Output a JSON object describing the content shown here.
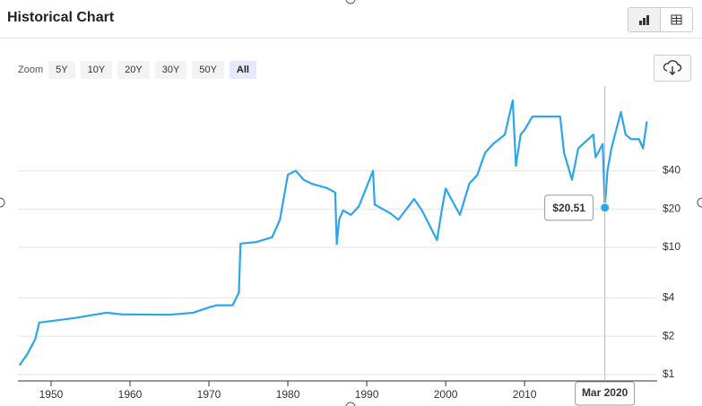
{
  "header": {
    "title": "Historical Chart"
  },
  "zoom": {
    "label": "Zoom",
    "options": [
      "5Y",
      "10Y",
      "20Y",
      "30Y",
      "50Y",
      "All"
    ],
    "active_index": 5
  },
  "chart_data": {
    "type": "line",
    "log_scale": true,
    "grid": true,
    "color": "#2ba6ee",
    "x": [
      1946,
      1947,
      1948,
      1948.5,
      1953,
      1957,
      1959,
      1965,
      1968,
      1970,
      1971,
      1973,
      1973.8,
      1974,
      1976,
      1978,
      1979,
      1980,
      1981,
      1982,
      1983,
      1985,
      1986,
      1986.2,
      1986.5,
      1987,
      1988,
      1989,
      1990.8,
      1991,
      1993,
      1994,
      1996,
      1997,
      1998.9,
      1999.5,
      2000,
      2001.8,
      2003,
      2004,
      2005,
      2006,
      2007.5,
      2008.5,
      2008.9,
      2009.5,
      2010,
      2011,
      2013,
      2014.5,
      2015,
      2016,
      2016.8,
      2018.7,
      2019,
      2019.9,
      2020.17,
      2020.5,
      2021,
      2022.2,
      2022.8,
      2023.5,
      2024.5,
      2025,
      2025.5
    ],
    "values": [
      1.18,
      1.45,
      1.9,
      2.56,
      2.78,
      3.06,
      2.97,
      2.95,
      3.06,
      3.37,
      3.5,
      3.5,
      4.4,
      10.7,
      11,
      12,
      16.5,
      37.2,
      40,
      34,
      31.7,
      29.2,
      27,
      10.6,
      16.5,
      19.5,
      18,
      21,
      40,
      21.7,
      18.5,
      16.5,
      24,
      19.5,
      11.4,
      19.5,
      29,
      18,
      31.7,
      37,
      55.5,
      65,
      77,
      143,
      43.7,
      77,
      84,
      107,
      107,
      107,
      55.5,
      34,
      60,
      77,
      51,
      65,
      20.51,
      40,
      60,
      116,
      77,
      71,
      71,
      60,
      98
    ],
    "xlim": [
      1945.8,
      2026.8
    ],
    "ylim": [
      0.89,
      174
    ],
    "xticks": [
      1950,
      1960,
      1970,
      1980,
      1990,
      2000,
      2010
    ],
    "yticks": [
      {
        "value": 1,
        "label": "$1"
      },
      {
        "value": 2,
        "label": "$2"
      },
      {
        "value": 4,
        "label": "$4"
      },
      {
        "value": 10,
        "label": "$10"
      },
      {
        "value": 20,
        "label": "$20"
      },
      {
        "value": 40,
        "label": "$40"
      }
    ],
    "tooltip": {
      "x": 2020.17,
      "value": 20.51,
      "label": "$20.51",
      "x_label": "Mar 2020"
    }
  }
}
